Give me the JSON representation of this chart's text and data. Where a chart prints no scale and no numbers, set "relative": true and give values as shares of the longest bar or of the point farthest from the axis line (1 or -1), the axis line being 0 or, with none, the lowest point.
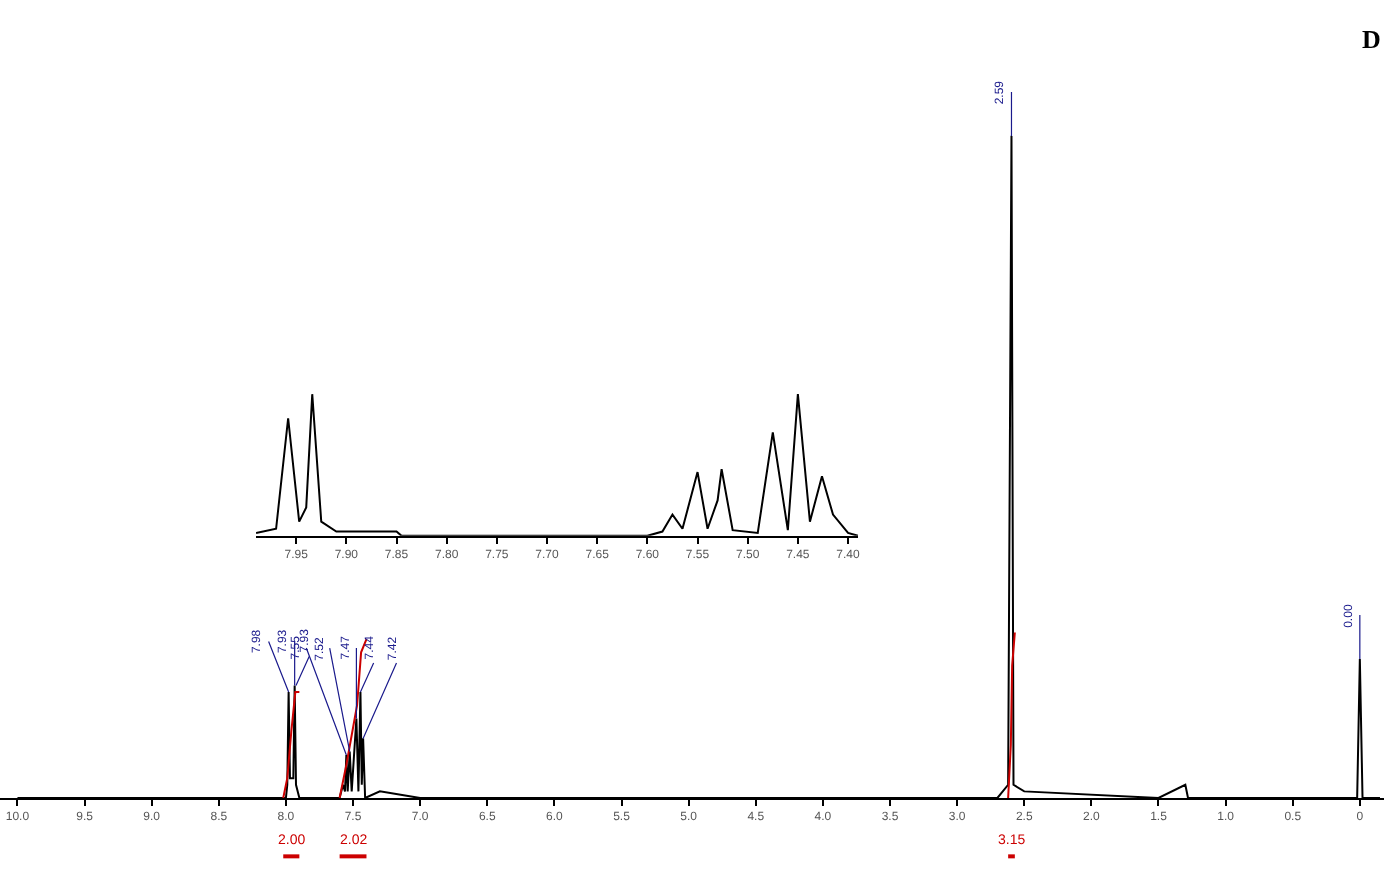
{
  "chart_data": [
    {
      "type": "line",
      "title": "D",
      "relative": true,
      "marker": "none",
      "line_style": "solid",
      "xlim": [
        10.13,
        -0.18
      ],
      "xticks": [
        {
          "value": 10,
          "label": "10.0"
        },
        9.5,
        {
          "value": 9,
          "label": "9.0"
        },
        8.5,
        {
          "value": 8,
          "label": "8.0"
        },
        7.5,
        {
          "value": 7,
          "label": "7.0"
        },
        6.5,
        {
          "value": 6,
          "label": "6.0"
        },
        5.5,
        {
          "value": 5,
          "label": "5.0"
        },
        4.5,
        {
          "value": 4,
          "label": "4.0"
        },
        3.5,
        {
          "value": 3,
          "label": "3.0"
        },
        2.5,
        {
          "value": 2,
          "label": "2.0"
        },
        1.5,
        {
          "value": 1,
          "label": "1.0"
        },
        0.5,
        0
      ],
      "series": [
        {
          "color": "#000000",
          "x": [
            10.0,
            8.2,
            8.0,
            7.99,
            7.98,
            7.97,
            7.945,
            7.935,
            7.925,
            7.9,
            7.6,
            7.575,
            7.56,
            7.55,
            7.54,
            7.525,
            7.51,
            7.475,
            7.46,
            7.445,
            7.435,
            7.425,
            7.41,
            7.3,
            7.0,
            2.7,
            2.62,
            2.595,
            2.58,
            2.5,
            1.5,
            1.3,
            1.28,
            0.02,
            0.0,
            -0.02,
            -0.15
          ],
          "values": [
            0,
            0,
            0,
            0.02,
            0.16,
            0.03,
            0.03,
            0.17,
            0.02,
            0,
            0,
            0.02,
            0.01,
            0.065,
            0.01,
            0.07,
            0.01,
            0.12,
            0.01,
            0.16,
            0.02,
            0.09,
            0,
            0.01,
            0,
            0,
            0.02,
            1.0,
            0.02,
            0.01,
            0,
            0.02,
            0,
            0,
            0.21,
            0,
            0
          ]
        },
        {
          "color": "#cc0000",
          "x": [
            8.02,
            7.99,
            7.96,
            7.93,
            7.9,
            7.75,
            7.6,
            7.55,
            7.47,
            7.44,
            7.4,
            5.0,
            2.62,
            2.6,
            2.59,
            2.57
          ],
          "values": [
            0,
            0.03,
            0.1,
            0.16,
            0.16,
            null,
            0,
            0.05,
            0.14,
            0.22,
            0.24,
            null,
            0,
            0.08,
            0.2,
            0.25
          ]
        }
      ],
      "annotations": [
        {
          "text": "7.98",
          "x": 7.98,
          "y": 0.16
        },
        {
          "text": "7.93",
          "x": 7.935,
          "y": 0.17
        },
        {
          "text": "7.93",
          "x": 7.925,
          "y": 0.17
        },
        {
          "text": "7.55",
          "x": 7.55,
          "y": 0.065
        },
        {
          "text": "7.52",
          "x": 7.525,
          "y": 0.07
        },
        {
          "text": "7.47",
          "x": 7.475,
          "y": 0.12
        },
        {
          "text": "7.44",
          "x": 7.445,
          "y": 0.16
        },
        {
          "text": "7.42",
          "x": 7.425,
          "y": 0.09
        },
        {
          "text": "2.59",
          "x": 2.595,
          "y": 1.0
        },
        {
          "text": "0.00",
          "x": 0.0,
          "y": 0.21
        },
        "2.00",
        "2.02",
        "3.15"
      ]
    },
    {
      "type": "line",
      "relative": true,
      "marker": "none",
      "line_style": "solid",
      "xlim": [
        7.99,
        7.39
      ],
      "xticks": [
        7.95,
        {
          "value": 7.9,
          "label": "7.90"
        },
        7.85,
        {
          "value": 7.8,
          "label": "7.80"
        },
        7.75,
        {
          "value": 7.7,
          "label": "7.70"
        },
        7.65,
        {
          "value": 7.6,
          "label": "7.60"
        },
        7.55,
        {
          "value": 7.5,
          "label": "7.50"
        },
        7.45,
        {
          "value": 7.4,
          "label": "7.40"
        }
      ],
      "series": [
        {
          "color": "#000000",
          "x": [
            7.99,
            7.97,
            7.958,
            7.947,
            7.94,
            7.934,
            7.925,
            7.91,
            7.85,
            7.845,
            7.6,
            7.585,
            7.575,
            7.565,
            7.55,
            7.54,
            7.53,
            7.526,
            7.515,
            7.49,
            7.475,
            7.46,
            7.45,
            7.438,
            7.426,
            7.415,
            7.4,
            7.39
          ],
          "values": [
            0.02,
            0.05,
            0.83,
            0.1,
            0.2,
            1.0,
            0.1,
            0.03,
            0.03,
            0,
            0,
            0.03,
            0.15,
            0.05,
            0.45,
            0.05,
            0.25,
            0.47,
            0.04,
            0.02,
            0.73,
            0.04,
            1.0,
            0.1,
            0.42,
            0.15,
            0.02,
            0
          ]
        }
      ]
    }
  ]
}
